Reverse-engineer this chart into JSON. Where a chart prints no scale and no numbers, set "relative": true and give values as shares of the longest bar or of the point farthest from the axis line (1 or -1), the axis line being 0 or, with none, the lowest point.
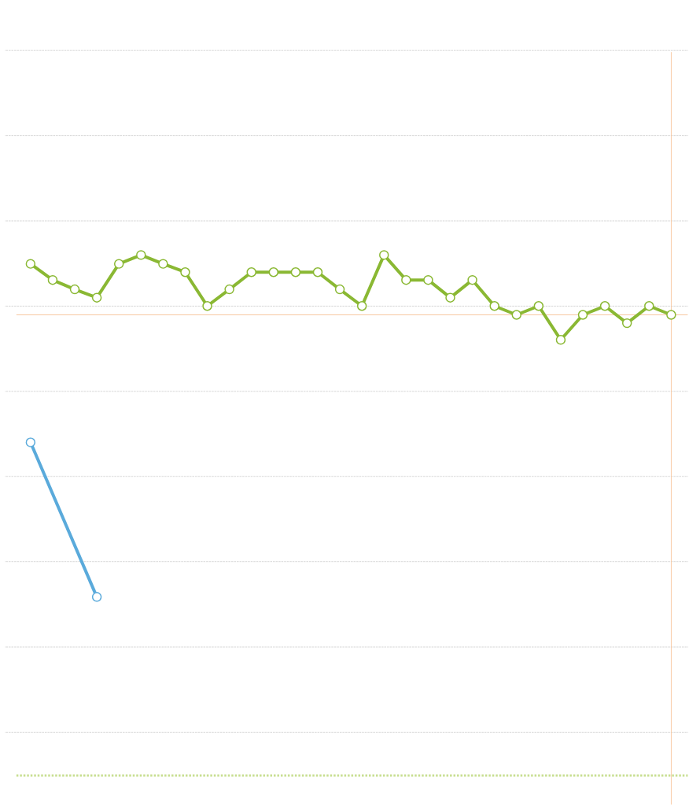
{
  "chart_data": {
    "type": "line",
    "relative": true,
    "categories": [
      null,
      null,
      null,
      null,
      null,
      null,
      null,
      null,
      null,
      null,
      null,
      null,
      null,
      null,
      null,
      null,
      null,
      null,
      null,
      null,
      null,
      null,
      null,
      null,
      null,
      null,
      null,
      null,
      null,
      null
    ],
    "series": [
      {
        "color": "#8ab833",
        "values": [
          0.983,
          0.952,
          0.934,
          0.918,
          0.983,
          1,
          0.983,
          0.967,
          0.902,
          0.934,
          0.967,
          0.967,
          0.967,
          0.967,
          0.934,
          0.902,
          1,
          0.952,
          0.952,
          0.918,
          0.952,
          0.902,
          0.885,
          0.902,
          0.837,
          0.885,
          0.902,
          0.869,
          0.902,
          0.885
        ]
      },
      {
        "color": "#5aaadb",
        "values": [
          0.64,
          null,
          null,
          0.343,
          null,
          null,
          null,
          null,
          null,
          null,
          null,
          null,
          null,
          null,
          null,
          null,
          null,
          null,
          null,
          null,
          null,
          null,
          null,
          null,
          null,
          null,
          null,
          null,
          null,
          null
        ]
      }
    ],
    "ref_lines": [
      {
        "axis": "y",
        "value": 0.885,
        "color": "#f8c9a0"
      }
    ],
    "grid": "y",
    "marker": "circle",
    "line_style": "solid"
  }
}
